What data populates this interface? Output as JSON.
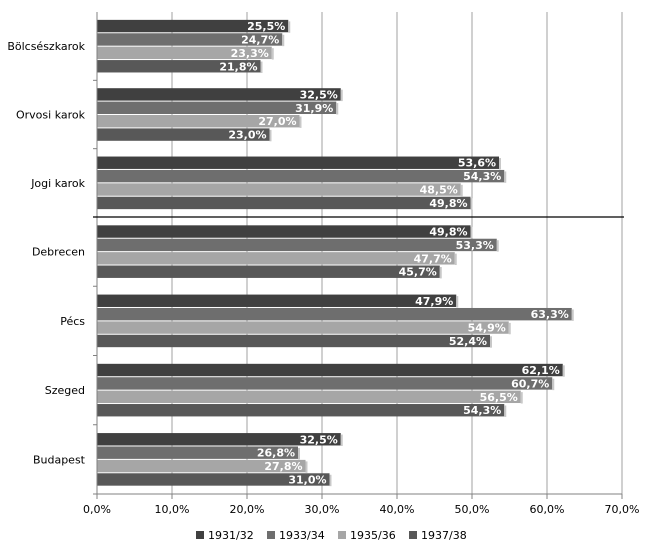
{
  "chart_data": {
    "type": "bar",
    "orientation": "horizontal",
    "categories": [
      "Bölcsészkarok",
      "Orvosi karok",
      "Jogi karok",
      "Debrecen",
      "Pécs",
      "Szeged",
      "Budapest"
    ],
    "series": [
      {
        "name": "1931/32",
        "values": [
          25.5,
          32.5,
          53.6,
          49.8,
          47.9,
          62.1,
          32.5
        ],
        "labels": [
          "25,5%",
          "32,5%",
          "53,6%",
          "49,8%",
          "47,9%",
          "62,1%",
          "32,5%"
        ],
        "color": "#404040"
      },
      {
        "name": "1933/34",
        "values": [
          24.7,
          31.9,
          54.3,
          53.3,
          63.3,
          60.7,
          26.8
        ],
        "labels": [
          "24,7%",
          "31,9%",
          "54,3%",
          "53,3%",
          "63,3%",
          "60,7%",
          "26,8%"
        ],
        "color": "#6e6e6e"
      },
      {
        "name": "1935/36",
        "values": [
          23.3,
          27.0,
          48.5,
          47.7,
          54.9,
          56.5,
          27.8
        ],
        "labels": [
          "23,3%",
          "27,0%",
          "48,5%",
          "47,7%",
          "54,9%",
          "56,5%",
          "27,8%"
        ],
        "color": "#a6a6a6"
      },
      {
        "name": "1937/38",
        "values": [
          21.8,
          23.0,
          49.8,
          45.7,
          52.4,
          54.3,
          31.0
        ],
        "labels": [
          "21,8%",
          "23,0%",
          "49,8%",
          "45,7%",
          "52,4%",
          "54,3%",
          "31,0%"
        ],
        "color": "#585858"
      }
    ],
    "xlim": [
      0,
      70
    ],
    "xticks": [
      0,
      10,
      20,
      30,
      40,
      50,
      60,
      70
    ],
    "xtick_labels": [
      "0,0%",
      "10,0%",
      "20,0%",
      "30,0%",
      "40,0%",
      "50,0%",
      "60,0%",
      "70,0%"
    ],
    "separator_after_category": "Jogi karok",
    "grid": true,
    "legend_position": "bottom",
    "title": "",
    "xlabel": "",
    "ylabel": ""
  }
}
